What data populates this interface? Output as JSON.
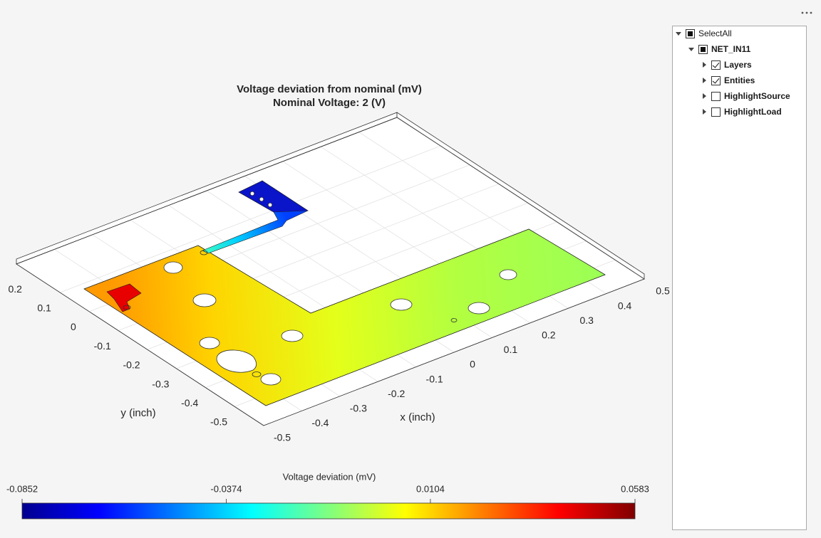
{
  "axes": {
    "title": [
      "Voltage deviation from nominal (mV)",
      "Nominal Voltage: 2 (V)"
    ],
    "xlabel": "x (inch)",
    "ylabel": "y (inch)",
    "xlim": [
      -0.5,
      0.5
    ],
    "ylim": [
      -0.5,
      0.35
    ],
    "xticks": [
      -0.5,
      -0.4,
      -0.3,
      -0.2,
      -0.1,
      0,
      0.1,
      0.2,
      0.3,
      0.4,
      0.5
    ],
    "yticks": [
      -0.5,
      -0.4,
      -0.3,
      -0.2,
      -0.1,
      0,
      0.1,
      0.2
    ],
    "grid": true
  },
  "colorbar": {
    "label": "Voltage deviation (mV)",
    "colormap": "jet",
    "clim": [
      -0.0852,
      0.0583
    ],
    "ticks": [
      -0.0852,
      -0.0374,
      0.0104,
      0.0583
    ]
  },
  "tree": {
    "nodes": [
      {
        "label": "SelectAll",
        "level": 0,
        "state": "partial",
        "expanded": true
      },
      {
        "label": "NET_IN11",
        "level": 1,
        "state": "partial",
        "expanded": true
      },
      {
        "label": "Layers",
        "level": 2,
        "state": "checked",
        "expanded": false
      },
      {
        "label": "Entities",
        "level": 2,
        "state": "checked",
        "expanded": false
      },
      {
        "label": "HighlightSource",
        "level": 2,
        "state": "unchecked",
        "expanded": false
      },
      {
        "label": "HighlightLoad",
        "level": 2,
        "state": "unchecked",
        "expanded": false
      }
    ]
  }
}
